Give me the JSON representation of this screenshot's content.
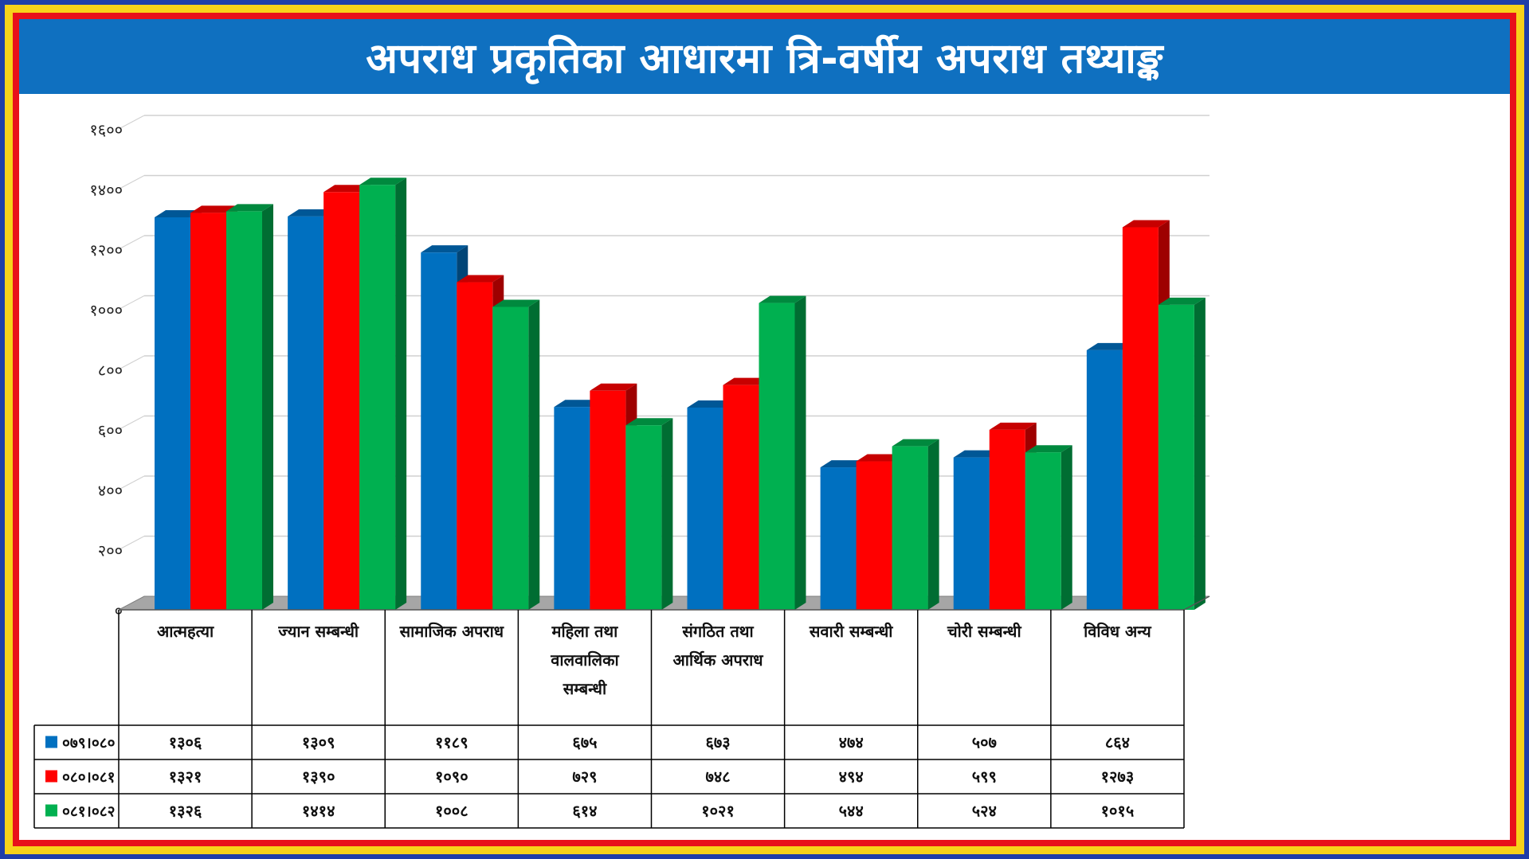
{
  "title": "अपराध प्रकृतिका आधारमा त्रि-वर्षीय अपराध तथ्याङ्क",
  "colors": {
    "series": [
      "#0070c0",
      "#ff0000",
      "#00b050"
    ],
    "title_bar": "#0f70c0",
    "outer_frame": "#1f3ea8",
    "gold_frame": "#f7d21a",
    "red_frame": "#e8101a"
  },
  "chart_data": {
    "type": "bar",
    "style": "3d-clustered-column-with-data-table",
    "title": "अपराध प्रकृतिका आधारमा त्रि-वर्षीय अपराध तथ्याङ्क",
    "categories": [
      [
        "आत्महत्या"
      ],
      [
        "ज्यान सम्बन्धी"
      ],
      [
        "सामाजिक अपराध"
      ],
      [
        "महिला तथा",
        "वालवालिका",
        "सम्बन्धी"
      ],
      [
        "संगठित तथा",
        "आर्थिक अपराध"
      ],
      [
        "सवारी सम्बन्धी"
      ],
      [
        "चोरी सम्बन्धी"
      ],
      [
        "विविध अन्य"
      ]
    ],
    "series": [
      {
        "name": "०७९।०८०",
        "values": [
          1306,
          1309,
          1189,
          675,
          673,
          474,
          507,
          864
        ],
        "labels": [
          "१३०६",
          "१३०९",
          "११८९",
          "६७५",
          "६७३",
          "४७४",
          "५०७",
          "८६४"
        ]
      },
      {
        "name": "०८०।०८१",
        "values": [
          1321,
          1390,
          1090,
          729,
          748,
          494,
          599,
          1273
        ],
        "labels": [
          "१३२१",
          "१३९०",
          "१०९०",
          "७२९",
          "७४८",
          "४९४",
          "५९९",
          "१२७३"
        ]
      },
      {
        "name": "०८१।०८२",
        "values": [
          1326,
          1414,
          1008,
          614,
          1021,
          544,
          524,
          1015
        ],
        "labels": [
          "१३२६",
          "१४१४",
          "१००८",
          "६१४",
          "१०२१",
          "५४४",
          "५२४",
          "१०१५"
        ]
      }
    ],
    "y_ticks": [
      {
        "value": 0,
        "label": "०"
      },
      {
        "value": 200,
        "label": "२००"
      },
      {
        "value": 400,
        "label": "४००"
      },
      {
        "value": 600,
        "label": "६००"
      },
      {
        "value": 800,
        "label": "८००"
      },
      {
        "value": 1000,
        "label": "१०००"
      },
      {
        "value": 1200,
        "label": "१२००"
      },
      {
        "value": 1400,
        "label": "१४००"
      },
      {
        "value": 1600,
        "label": "१६००"
      }
    ],
    "ylim": [
      0,
      1600
    ],
    "grid": true,
    "legend": "data-table-left"
  }
}
